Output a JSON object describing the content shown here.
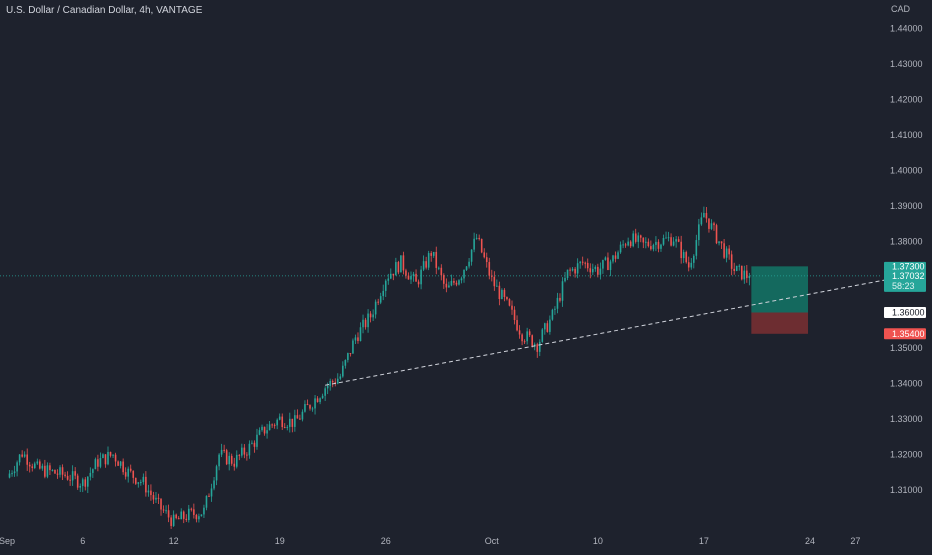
{
  "header": {
    "title": "U.S. Dollar / Canadian Dollar, 4h, VANTAGE"
  },
  "price_axis": {
    "currency": "CAD"
  },
  "colors": {
    "background": "#1e222d",
    "bull": "#26a69a",
    "bear": "#ef5350",
    "target_zone": "#137567",
    "stop_zone": "#7b2f32",
    "trendline": "#d1d4dc"
  },
  "position": {
    "target_label": "1.37300",
    "current_price": "1.37032",
    "countdown": "58:23",
    "entry_label": "1.36000",
    "stop_label": "1.35400"
  },
  "chart_data": {
    "type": "candlestick",
    "title": "U.S. Dollar / Canadian Dollar, 4h, VANTAGE",
    "y_axis_unit": "CAD",
    "ylim": [
      1.3,
      1.446
    ],
    "y_ticks": [
      "1.44000",
      "1.43000",
      "1.42000",
      "1.41000",
      "1.40000",
      "1.39000",
      "1.38000",
      "1.37000",
      "1.36000",
      "1.35000",
      "1.34000",
      "1.33000",
      "1.32000",
      "1.31000"
    ],
    "x_ticks": [
      "Sep",
      "6",
      "12",
      "19",
      "26",
      "Oct",
      "10",
      "17",
      "24",
      "27"
    ],
    "grid": false,
    "ohlc_path": [
      [
        "Sep 1",
        1.3135
      ],
      [
        "Sep 2",
        1.3205
      ],
      [
        "Sep 3",
        1.316
      ],
      [
        "Sep 5",
        1.314
      ],
      [
        "Sep 6",
        1.312
      ],
      [
        "Sep 7",
        1.318
      ],
      [
        "Sep 8",
        1.32
      ],
      [
        "Sep 9",
        1.315
      ],
      [
        "Sep 10",
        1.312
      ],
      [
        "Sep 11",
        1.3055
      ],
      [
        "Sep 12",
        1.301
      ],
      [
        "Sep 13",
        1.303
      ],
      [
        "Sep 14",
        1.304
      ],
      [
        "Sep 15",
        1.32
      ],
      [
        "Sep 16",
        1.318
      ],
      [
        "Sep 17",
        1.322
      ],
      [
        "Sep 18",
        1.327
      ],
      [
        "Sep 19",
        1.33
      ],
      [
        "Sep 20",
        1.329
      ],
      [
        "Sep 21",
        1.334
      ],
      [
        "Sep 22",
        1.339
      ],
      [
        "Sep 23",
        1.342
      ],
      [
        "Sep 24",
        1.353
      ],
      [
        "Sep 25",
        1.359
      ],
      [
        "Sep 26",
        1.37
      ],
      [
        "Sep 27",
        1.374
      ],
      [
        "Sep 28",
        1.368
      ],
      [
        "Sep 29",
        1.377
      ],
      [
        "Sep 30",
        1.366
      ],
      [
        "Oct 1",
        1.371
      ],
      [
        "Oct 2",
        1.381
      ],
      [
        "Oct 3",
        1.369
      ],
      [
        "Oct 4",
        1.362
      ],
      [
        "Oct 5",
        1.354
      ],
      [
        "Oct 6",
        1.351
      ],
      [
        "Oct 7",
        1.359
      ],
      [
        "Oct 8",
        1.371
      ],
      [
        "Oct 9",
        1.374
      ],
      [
        "Oct 10",
        1.372
      ],
      [
        "Oct 11",
        1.375
      ],
      [
        "Oct 12",
        1.381
      ],
      [
        "Oct 13",
        1.379
      ],
      [
        "Oct 14",
        1.38
      ],
      [
        "Oct 15",
        1.381
      ],
      [
        "Oct 16",
        1.373
      ],
      [
        "Oct 17",
        1.388
      ],
      [
        "Oct 18",
        1.38
      ],
      [
        "Oct 19",
        1.372
      ],
      [
        "Oct 20",
        1.37
      ]
    ],
    "annotations": {
      "target": 1.373,
      "current_price": 1.37032,
      "entry": 1.36,
      "stop": 1.354,
      "trendline": [
        [
          "Sep 22",
          1.3395
        ],
        [
          "Oct 30",
          1.37
        ]
      ]
    }
  }
}
